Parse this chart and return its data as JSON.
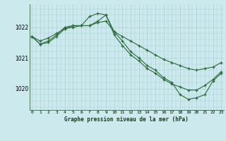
{
  "title": "Graphe pression niveau de la mer (hPa)",
  "bg_color": "#cce9ed",
  "grid_color": "#aad0d5",
  "line_color": "#2d6b3a",
  "x_labels": [
    "0",
    "1",
    "2",
    "3",
    "4",
    "5",
    "6",
    "7",
    "8",
    "9",
    "10",
    "11",
    "12",
    "13",
    "14",
    "15",
    "16",
    "17",
    "18",
    "19",
    "20",
    "21",
    "22",
    "23"
  ],
  "yticks": [
    1020,
    1021,
    1022
  ],
  "ylim": [
    1019.3,
    1022.75
  ],
  "xlim": [
    -0.3,
    23.3
  ],
  "series": {
    "line1": {
      "x": [
        0,
        1,
        2,
        3,
        4,
        5,
        6,
        7,
        8,
        9,
        10,
        11,
        12,
        13,
        14,
        15,
        16,
        17,
        18,
        19,
        20,
        21,
        22,
        23
      ],
      "y": [
        1021.7,
        1021.55,
        1021.65,
        1021.8,
        1021.95,
        1022.0,
        1022.05,
        1022.05,
        1022.15,
        1022.2,
        1021.85,
        1021.7,
        1021.55,
        1021.4,
        1021.25,
        1021.1,
        1020.95,
        1020.85,
        1020.75,
        1020.65,
        1020.6,
        1020.65,
        1020.7,
        1020.85
      ]
    },
    "line2": {
      "x": [
        0,
        1,
        2,
        3,
        4,
        5,
        6,
        7,
        8,
        9,
        10,
        11,
        12,
        13,
        14,
        15,
        16,
        17,
        18,
        19,
        20,
        21,
        22,
        23
      ],
      "y": [
        1021.7,
        1021.45,
        1021.55,
        1021.75,
        1022.0,
        1022.05,
        1022.05,
        1022.35,
        1022.45,
        1022.4,
        1021.85,
        1021.55,
        1021.2,
        1021.0,
        1020.75,
        1020.6,
        1020.35,
        1020.2,
        1019.8,
        1019.65,
        1019.7,
        1019.8,
        1020.25,
        1020.5
      ]
    },
    "line3": {
      "x": [
        0,
        1,
        2,
        3,
        4,
        5,
        6,
        7,
        8,
        9,
        10,
        11,
        12,
        13,
        14,
        15,
        16,
        17,
        18,
        19,
        20,
        21,
        22,
        23
      ],
      "y": [
        1021.7,
        1021.45,
        1021.5,
        1021.7,
        1021.95,
        1022.05,
        1022.05,
        1022.05,
        1022.2,
        1022.4,
        1021.75,
        1021.4,
        1021.1,
        1020.9,
        1020.65,
        1020.5,
        1020.3,
        1020.15,
        1020.05,
        1019.95,
        1019.95,
        1020.1,
        1020.3,
        1020.55
      ]
    }
  }
}
